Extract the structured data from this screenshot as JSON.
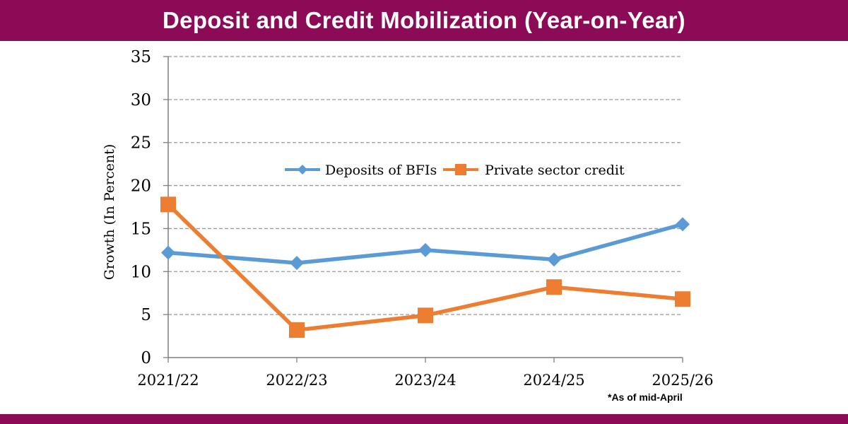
{
  "header": {
    "title": "Deposit and Credit Mobilization (Year-on-Year)"
  },
  "note": "*As of mid-April",
  "colors": {
    "banner": "#8b0b57",
    "deposits": "#5b9bd5",
    "credit": "#ed7d31"
  },
  "chart_data": {
    "type": "line",
    "title": "",
    "xlabel": "",
    "ylabel": "Growth (In Percent)",
    "categories": [
      "2021/22",
      "2022/23",
      "2023/24",
      "2024/25",
      "2025/26"
    ],
    "ylim": [
      0,
      35
    ],
    "yticks": [
      0,
      5,
      10,
      15,
      20,
      25,
      30,
      35
    ],
    "grid": true,
    "legend": "center",
    "series": [
      {
        "name": "Deposits of BFIs",
        "values": [
          12.2,
          11.0,
          12.5,
          11.4,
          15.5
        ],
        "marker": "diamond"
      },
      {
        "name": "Private sector credit",
        "values": [
          17.8,
          3.2,
          4.9,
          8.2,
          6.8
        ],
        "marker": "square"
      }
    ]
  }
}
